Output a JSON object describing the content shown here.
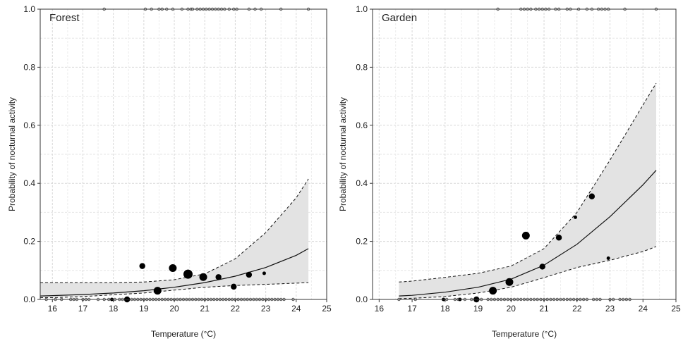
{
  "chart_data": [
    {
      "type": "scatter",
      "title": "Forest",
      "xlabel": "Temperature (°C)",
      "ylabel": "Probability of nocturnal activity",
      "xlim": [
        15.6,
        25.0
      ],
      "ylim": [
        0.0,
        1.0
      ],
      "xticks": [
        16,
        17,
        18,
        19,
        20,
        21,
        22,
        23,
        24,
        25
      ],
      "yticks": [
        "0.0",
        "0.2",
        "0.4",
        "0.6",
        "0.8",
        "1.0"
      ],
      "grid": true,
      "fit_line": {
        "x": [
          15.6,
          16,
          17,
          18,
          19,
          20,
          21,
          22,
          23,
          24,
          24.4
        ],
        "y": [
          0.012,
          0.013,
          0.017,
          0.022,
          0.03,
          0.042,
          0.058,
          0.08,
          0.11,
          0.152,
          0.175
        ],
        "lower": [
          0.006,
          0.006,
          0.01,
          0.016,
          0.022,
          0.032,
          0.042,
          0.048,
          0.052,
          0.056,
          0.058
        ],
        "upper": [
          0.058,
          0.058,
          0.058,
          0.058,
          0.06,
          0.068,
          0.088,
          0.14,
          0.23,
          0.35,
          0.415
        ]
      },
      "binned_points": [
        {
          "x": 17.95,
          "y": 0.0,
          "size": 1
        },
        {
          "x": 18.45,
          "y": 0.0,
          "size": 2
        },
        {
          "x": 18.95,
          "y": 0.115,
          "size": 2
        },
        {
          "x": 19.45,
          "y": 0.03,
          "size": 3
        },
        {
          "x": 19.95,
          "y": 0.108,
          "size": 3
        },
        {
          "x": 20.45,
          "y": 0.087,
          "size": 4
        },
        {
          "x": 20.95,
          "y": 0.077,
          "size": 3
        },
        {
          "x": 21.45,
          "y": 0.077,
          "size": 2
        },
        {
          "x": 21.95,
          "y": 0.044,
          "size": 2
        },
        {
          "x": 22.45,
          "y": 0.085,
          "size": 2
        },
        {
          "x": 22.95,
          "y": 0.09,
          "size": 1
        }
      ],
      "raw_top_x": [
        17.7,
        19.05,
        19.25,
        19.5,
        19.6,
        19.75,
        19.95,
        20.25,
        20.45,
        20.55,
        20.6,
        20.75,
        20.85,
        20.95,
        21.05,
        21.15,
        21.25,
        21.35,
        21.45,
        21.55,
        21.65,
        21.8,
        21.95,
        22.05,
        22.45,
        22.65,
        22.85,
        23.5,
        24.4
      ],
      "raw_bottom_x": [
        15.8,
        16.1,
        16.3,
        16.6,
        16.7,
        16.8,
        17.0,
        17.1,
        17.2,
        17.5,
        17.7,
        17.85,
        18.05,
        18.2,
        18.3,
        18.45,
        18.6,
        18.7,
        18.8,
        18.9,
        19.0,
        19.1,
        19.2,
        19.3,
        19.4,
        19.5,
        19.6,
        19.7,
        19.8,
        19.9,
        20.0,
        20.1,
        20.2,
        20.3,
        20.4,
        20.5,
        20.6,
        20.7,
        20.8,
        20.9,
        21.0,
        21.1,
        21.2,
        21.3,
        21.4,
        21.5,
        21.6,
        21.7,
        21.8,
        21.9,
        22.0,
        22.1,
        22.2,
        22.3,
        22.4,
        22.5,
        22.6,
        22.7,
        22.8,
        22.9,
        23.0,
        23.1,
        23.2,
        23.3,
        23.4,
        23.5,
        23.6,
        23.9
      ]
    },
    {
      "type": "scatter",
      "title": "Garden",
      "xlabel": "Temperature (°C)",
      "ylabel": "Probability of nocturnal activity",
      "xlim": [
        15.8,
        25.0
      ],
      "ylim": [
        0.0,
        1.0
      ],
      "xticks": [
        16,
        17,
        18,
        19,
        20,
        21,
        22,
        23,
        24,
        25
      ],
      "yticks": [
        "0.0",
        "0.2",
        "0.4",
        "0.6",
        "0.8",
        "1.0"
      ],
      "grid": true,
      "fit_line": {
        "x": [
          16.6,
          17,
          18,
          19,
          20,
          21,
          22,
          23,
          24,
          24.4
        ],
        "y": [
          0.012,
          0.014,
          0.025,
          0.042,
          0.07,
          0.118,
          0.19,
          0.285,
          0.395,
          0.445
        ],
        "lower": [
          0.003,
          0.004,
          0.01,
          0.022,
          0.042,
          0.075,
          0.11,
          0.135,
          0.165,
          0.182
        ],
        "upper": [
          0.06,
          0.063,
          0.076,
          0.09,
          0.115,
          0.175,
          0.3,
          0.48,
          0.67,
          0.745
        ]
      },
      "binned_points": [
        {
          "x": 17.95,
          "y": 0.0,
          "size": 1
        },
        {
          "x": 18.45,
          "y": 0.0,
          "size": 1
        },
        {
          "x": 18.95,
          "y": 0.0,
          "size": 2
        },
        {
          "x": 19.45,
          "y": 0.03,
          "size": 3
        },
        {
          "x": 19.95,
          "y": 0.06,
          "size": 3
        },
        {
          "x": 20.45,
          "y": 0.22,
          "size": 3
        },
        {
          "x": 20.95,
          "y": 0.113,
          "size": 2
        },
        {
          "x": 21.45,
          "y": 0.213,
          "size": 2
        },
        {
          "x": 21.95,
          "y": 0.283,
          "size": 1
        },
        {
          "x": 22.45,
          "y": 0.355,
          "size": 2
        },
        {
          "x": 22.95,
          "y": 0.142,
          "size": 1
        }
      ],
      "raw_top_x": [
        19.6,
        20.3,
        20.4,
        20.5,
        20.6,
        20.75,
        20.85,
        20.95,
        21.05,
        21.15,
        21.35,
        21.45,
        21.7,
        21.8,
        22.05,
        22.3,
        22.45,
        22.65,
        22.75,
        22.85,
        22.95,
        23.45,
        24.4
      ],
      "raw_bottom_x": [
        16.6,
        17.1,
        18.05,
        18.3,
        18.4,
        18.6,
        18.8,
        19.0,
        19.1,
        19.3,
        19.4,
        19.5,
        19.6,
        19.7,
        19.8,
        19.9,
        20.0,
        20.1,
        20.2,
        20.3,
        20.4,
        20.5,
        20.6,
        20.7,
        20.8,
        20.9,
        21.0,
        21.1,
        21.2,
        21.3,
        21.4,
        21.5,
        21.6,
        21.7,
        21.8,
        21.9,
        22.0,
        22.1,
        22.2,
        22.3,
        22.5,
        22.6,
        22.7,
        23.0,
        23.1,
        23.3,
        23.4,
        23.5,
        23.6
      ]
    }
  ]
}
